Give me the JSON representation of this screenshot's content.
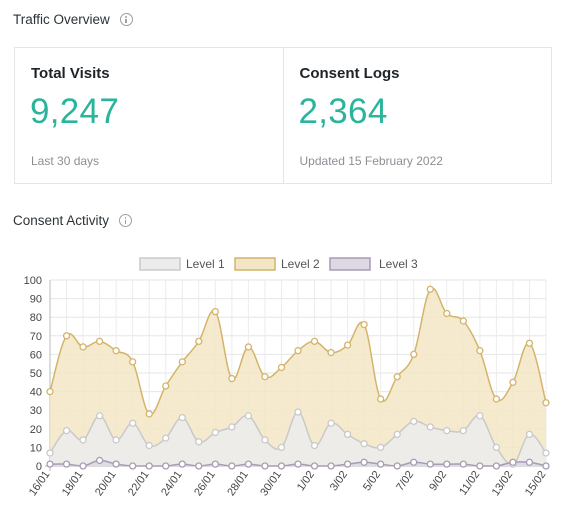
{
  "traffic": {
    "title": "Traffic Overview"
  },
  "stats": [
    {
      "title": "Total Visits",
      "value": "9,247",
      "sub": "Last 30 days"
    },
    {
      "title": "Consent Logs",
      "value": "2,364",
      "sub": "Updated 15 February 2022"
    }
  ],
  "activity": {
    "title": "Consent Activity"
  },
  "chart_data": {
    "type": "area",
    "legend_position": "top",
    "grid": true,
    "ylim": [
      0,
      100
    ],
    "yticks": [
      0,
      10,
      20,
      30,
      40,
      50,
      60,
      70,
      80,
      90,
      100
    ],
    "x": [
      "16/01",
      "17/01",
      "18/01",
      "19/01",
      "20/01",
      "21/01",
      "22/01",
      "23/01",
      "24/01",
      "25/01",
      "26/01",
      "27/01",
      "28/01",
      "29/01",
      "30/01",
      "31/01",
      "1/02",
      "2/02",
      "3/02",
      "4/02",
      "5/02",
      "6/02",
      "7/02",
      "8/02",
      "9/02",
      "10/02",
      "11/02",
      "12/02",
      "13/02",
      "14/02",
      "15/02"
    ],
    "xtick_labels": [
      "16/01",
      "",
      "18/01",
      "",
      "20/01",
      "",
      "22/01",
      "",
      "24/01",
      "",
      "26/01",
      "",
      "28/01",
      "",
      "30/01",
      "",
      "1/02",
      "",
      "3/02",
      "",
      "5/02",
      "",
      "7/02",
      "",
      "9/02",
      "",
      "11/02",
      "",
      "13/02",
      "",
      "15/02"
    ],
    "series": [
      {
        "name": "Level 1",
        "color": "#c9c9c9",
        "fill": "#ececec",
        "values": [
          7,
          19,
          14,
          27,
          14,
          23,
          11,
          15,
          26,
          13,
          18,
          21,
          27,
          14,
          10,
          29,
          11,
          23,
          17,
          12,
          10,
          17,
          24,
          21,
          19,
          19,
          27,
          10,
          1,
          17,
          7
        ]
      },
      {
        "name": "Level 2",
        "color": "#d4b46a",
        "fill": "#f3e6c6",
        "values": [
          40,
          70,
          64,
          67,
          62,
          56,
          28,
          43,
          56,
          67,
          83,
          47,
          64,
          48,
          53,
          62,
          67,
          61,
          65,
          76,
          36,
          48,
          60,
          95,
          82,
          78,
          62,
          36,
          45,
          66,
          34
        ]
      },
      {
        "name": "Level 3",
        "color": "#a89bb5",
        "fill": "#dcd8e4",
        "values": [
          1,
          1,
          0,
          3,
          1,
          0,
          0,
          0,
          1,
          0,
          1,
          0,
          1,
          0,
          0,
          1,
          0,
          0,
          1,
          2,
          1,
          0,
          2,
          1,
          1,
          1,
          0,
          0,
          2,
          2,
          0
        ]
      }
    ]
  }
}
